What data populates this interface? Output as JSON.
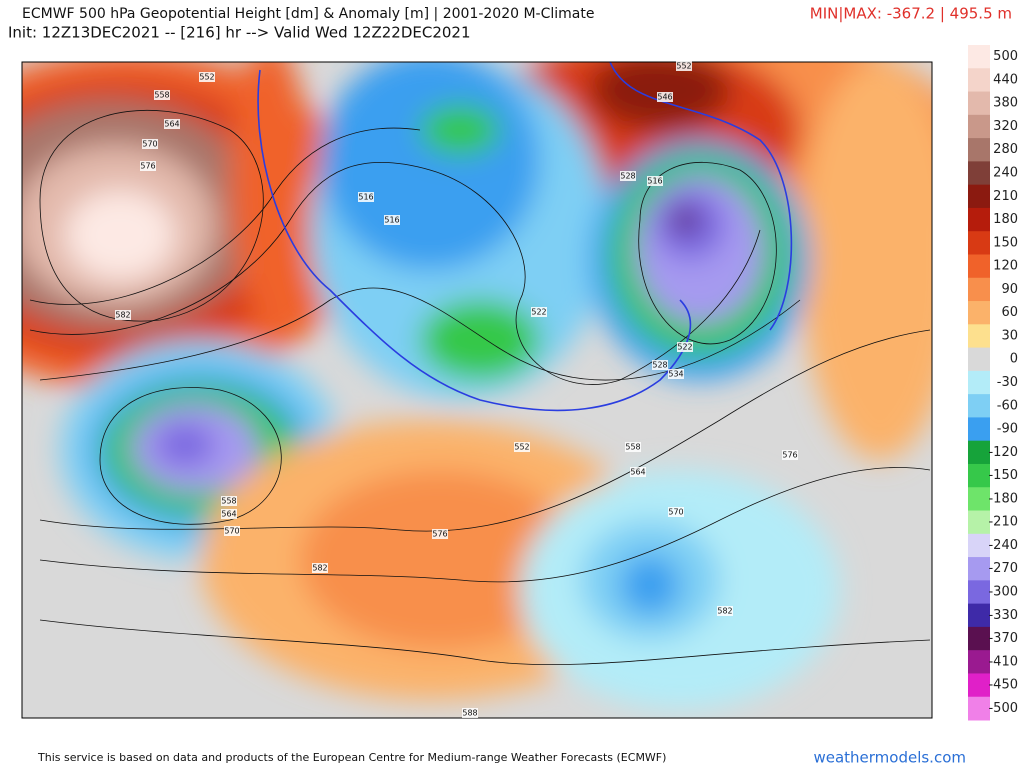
{
  "header": {
    "title": "ECMWF 500 hPa Geopotential Height [dm] & Anomaly [m] | 2001-2020 M-Climate",
    "subtitle": "Init: 12Z13DEC2021 -- [216] hr --> Valid Wed 12Z22DEC2021",
    "minmax": "MIN|MAX: -367.2 | 495.5 m"
  },
  "colorbar": {
    "ticks": [
      500,
      440,
      380,
      320,
      280,
      240,
      210,
      180,
      150,
      120,
      90,
      60,
      30,
      0,
      -30,
      -60,
      -90,
      -120,
      -150,
      -180,
      -210,
      -240,
      -270,
      -300,
      -330,
      -370,
      -410,
      -450,
      -500
    ],
    "colors": [
      "#fde9e4",
      "#f4d4ca",
      "#e3b9ac",
      "#c9988a",
      "#a8766a",
      "#7f3f38",
      "#8b1a10",
      "#b51c0c",
      "#d83a14",
      "#f0622a",
      "#f88f4c",
      "#fbb26a",
      "#fde08e",
      "#d9d9d9",
      "#b3ecf8",
      "#7ecff4",
      "#3a9ff0",
      "#16a33a",
      "#36c84a",
      "#6ee46a",
      "#b6f2a8",
      "#d8d4f8",
      "#a69af0",
      "#7a68e0",
      "#3e2aa8",
      "#5a1050",
      "#9a1a90",
      "#e020c8",
      "#f080e8"
    ]
  },
  "contour_labels": [
    552,
    558,
    564,
    570,
    576,
    582,
    552,
    546,
    528,
    516,
    516,
    516,
    522,
    522,
    528,
    534,
    552,
    558,
    564,
    576,
    570,
    558,
    564,
    570,
    576,
    582,
    582,
    588
  ],
  "footer": {
    "credit": "This service is based on data and products of the European Centre for Medium-range Weather Forecasts (ECMWF)",
    "site": "weathermodels.com"
  }
}
